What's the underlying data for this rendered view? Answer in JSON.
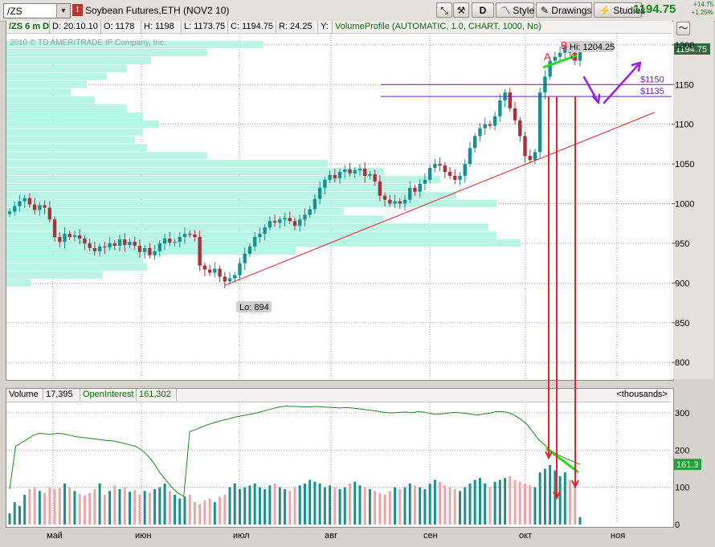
{
  "symbol": {
    "value": "/ZS",
    "badge": "!"
  },
  "instrument_name": "Soybean Futures,ETH (NOV2 10)",
  "toolbar": {
    "d_label": "D",
    "style_label": "Style",
    "drawings_label": "Drawings",
    "studies_label": "Studies",
    "last_price": "1194.75",
    "net_change": "+14.75",
    "pct_change": "+1.25%"
  },
  "info": {
    "period": "/ZS 6 m D",
    "date": "D: 20.10.10",
    "open": "O: 1178",
    "high": "H: 1198",
    "low": "L: 1173.75",
    "close": "C: 1194.75",
    "range": "R: 24.25",
    "y": "Y:",
    "study": "VolumeProfile (AUTOMATIC, 1.0, CHART, 1000, No)"
  },
  "copyright": "2010 © TD AMERITRADE IP Company, Inc.",
  "volume_header": {
    "volume_label": "Volume",
    "volume_value": "17,395",
    "oi_label": "OpenInterest",
    "oi_value": "161,302",
    "units": "<thousands>"
  },
  "annotations": {
    "hi_label": "Hi: 1204.25",
    "lo_label": "Lo: 894",
    "level_1150": "$1150",
    "level_1135": "$1135",
    "point_a": "A",
    "point_b": "B",
    "point_c": "C",
    "last_tag": "1194.75",
    "oi_tag": "161.3"
  },
  "colors": {
    "up": "#1a8f8f",
    "down": "#a8323b",
    "profile": "#b8f5e4",
    "trendline": "#e8232b",
    "level_lines": "#6a1fb0",
    "arrow": "#9b1fe6",
    "green_mark": "#22dd22",
    "oi_line": "#1e8a1e"
  },
  "chart_data": {
    "type": "candlestick",
    "x_labels": [
      "май",
      "июн",
      "июл",
      "авг",
      "сен",
      "окт",
      "ноя"
    ],
    "price_ticks": [
      800,
      850,
      900,
      950,
      1000,
      1050,
      1100,
      1150,
      1200
    ],
    "price_ylim": [
      780,
      1215
    ],
    "volume_ticks": [
      0,
      100,
      200,
      300
    ],
    "volume_ylim": [
      0,
      330
    ],
    "closes": [
      990,
      997,
      1003,
      1007,
      999,
      992,
      998,
      995,
      980,
      958,
      952,
      962,
      958,
      960,
      956,
      950,
      944,
      940,
      946,
      945,
      950,
      947,
      955,
      948,
      952,
      947,
      939,
      944,
      935,
      940,
      950,
      956,
      951,
      952,
      958,
      962,
      961,
      958,
      922,
      917,
      913,
      918,
      908,
      902,
      906,
      910,
      925,
      937,
      946,
      958,
      962,
      970,
      978,
      976,
      980,
      982,
      978,
      972,
      980,
      986,
      993,
      1006,
      1020,
      1030,
      1036,
      1032,
      1040,
      1043,
      1038,
      1042,
      1044,
      1035,
      1037,
      1028,
      1010,
      1005,
      1000,
      1003,
      1000,
      1005,
      1020,
      1015,
      1025,
      1030,
      1045,
      1050,
      1048,
      1040,
      1035,
      1030,
      1035,
      1050,
      1070,
      1085,
      1095,
      1100,
      1098,
      1110,
      1130,
      1140,
      1120,
      1105,
      1085,
      1060,
      1055,
      1065,
      1140,
      1160,
      1180,
      1185,
      1190,
      1198,
      1190,
      1180,
      1195
    ],
    "volume": [
      30,
      60,
      50,
      80,
      95,
      100,
      90,
      85,
      100,
      95,
      98,
      110,
      100,
      90,
      82,
      78,
      85,
      95,
      110,
      80,
      90,
      105,
      95,
      100,
      88,
      92,
      80,
      90,
      85,
      95,
      100,
      110,
      90,
      80,
      70,
      75,
      80,
      60,
      55,
      65,
      70,
      60,
      75,
      80,
      100,
      110,
      95,
      100,
      105,
      110,
      100,
      95,
      105,
      110,
      100,
      95,
      90,
      100,
      105,
      110,
      120,
      115,
      110,
      100,
      105,
      100,
      95,
      100,
      110,
      115,
      105,
      100,
      95,
      90,
      85,
      80,
      90,
      100,
      95,
      100,
      110,
      105,
      100,
      95,
      110,
      120,
      115,
      105,
      100,
      95,
      90,
      100,
      110,
      120,
      125,
      110,
      100,
      115,
      120,
      125,
      130,
      120,
      115,
      110,
      105,
      100,
      140,
      150,
      160,
      145,
      130,
      140,
      120,
      110,
      20
    ],
    "open_interest": [
      95,
      210,
      220,
      230,
      240,
      245,
      243,
      242,
      245,
      243,
      240,
      236,
      234,
      232,
      230,
      228,
      226,
      225,
      222,
      218,
      214,
      210,
      200,
      185,
      165,
      140,
      120,
      100,
      85,
      75,
      250,
      255,
      262,
      268,
      273,
      278,
      282,
      286,
      290,
      293,
      296,
      299,
      303,
      308,
      312,
      316,
      318,
      317,
      317,
      316,
      316,
      317,
      316,
      315,
      314,
      313,
      314,
      313,
      311,
      309,
      307,
      305,
      302,
      300,
      300,
      301,
      302,
      300,
      303,
      302,
      298,
      296,
      297,
      299,
      301,
      300,
      298,
      296,
      294,
      297,
      299,
      303,
      303,
      301,
      294,
      284,
      272,
      252,
      230,
      215,
      200,
      190,
      182,
      175,
      168,
      161.3
    ],
    "volume_profile_note": "horizontal volume-at-price bars on the left",
    "hi": 1204.25,
    "lo": 894,
    "levels": [
      1150,
      1135
    ]
  }
}
